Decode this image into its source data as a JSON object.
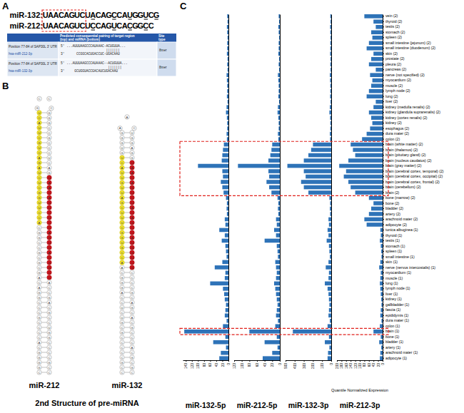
{
  "panel_labels": [
    "A",
    "B",
    "C"
  ],
  "panel_a": {
    "sequences": [
      {
        "name": "miR-132:",
        "sequence": "UAACAGUCUACAGCCAUGGUCG"
      },
      {
        "name": "miR-212:",
        "sequence": "UAACAGUCUCCAGUCACGGCC"
      }
    ],
    "seed": "UAACAGUC",
    "table": {
      "header": [
        "Predicted consequential pairing of target region (top) and miRNA (bottom)",
        "Site type"
      ],
      "rows": [
        {
          "target": "Position 77-84 of SAP30L 3' UTR",
          "mirna": "hsa-miR-212-3p",
          "pairing": [
            "5' ...AUUUAAGCCCAUAAAC-ACUGUUA...",
            "                       |||||||",
            "3'      CCGGCACUGACCUC-UGACAAU"
          ],
          "site": "8mer"
        },
        {
          "target": "Position 77-84 of SAP30L 3' UTR",
          "mirna": "hsa-miR-132-3p",
          "pairing": [
            "5' ...AUUUAAGCCCAUAAAC--ACUGUUA...",
            "                        |||||||",
            "3'     GCUGGUACCGACAUCUGACAAU"
          ],
          "site": "8mer"
        }
      ]
    }
  },
  "panel_b": {
    "structures": [
      {
        "name": "miR-212",
        "sequence": "CGGGGCACCCCGCCCGGACAGCGCGCCGGCACCUUGGCUCUAGACUGCUUACUGCCCGGGCCGCCCUCAGUAACAGUCUCCAGUCACGGCCACCGACGCCUGGCCCCGCC",
        "mature_5p": "ACCUUGGCUCUAGACUGCUUACU",
        "mature_3p": "UAACAGUCUCCAGUCACGGCC"
      },
      {
        "name": "miR-132",
        "sequence": "CCGCCCCCGCGUCUCCAGGGCAACCGUGGCUUUCGAUUGUUACUGUGGGAACUGGAGGUAACAGUCUACAGCCAUGGUCGCCCCGCAGCACGCCCACGCGC",
        "mature_5p": "ACCGUGGCUUUCGAUUGUUACU",
        "mature_3p": "UAACAGUCUACAGCCAUGGUCG"
      }
    ],
    "caption": "2nd Structure of pre-miRNA"
  },
  "panel_c": {
    "highlighted_categories": [
      "brain (white matter) (2)",
      "brain (thalamus) (2)",
      "brain (pituitary gland) (2)",
      "brain (nucleus caudatus) (2)",
      "brain (gray matter) (2)",
      "brain (cerebral cortex, temporal) (2)",
      "brain (cerebral cortex, occipital) (2)",
      "brain (cerebral cortex, frontal) (2)",
      "brain (cerebellum) (2)",
      "brain (2)",
      "brain (1)"
    ]
  },
  "chart_data": [
    {
      "type": "bar",
      "orientation": "horizontal",
      "title": "miR-132-5p",
      "color": "#2e73b8",
      "tick_labels": "x",
      "categories": [
        "vein (2)",
        "thyroid (2)",
        "testis (2)",
        "stomach (2)",
        "spleen (2)",
        "small intestine (jejunum) (2)",
        "small intestine (duodenum) (2)",
        "skin (2)",
        "prostate (2)",
        "pleura (2)",
        "pancreas (2)",
        "nerve (not specified) (2)",
        "myocardium (2)",
        "muscle (2)",
        "lymph node (2)",
        "lung (2)",
        "liver (2)",
        "kidney (medulla renalis) (2)",
        "kidney (glandula suprarenalis) (2)",
        "kidney (cortex renalis) (2)",
        "kidney (2)",
        "esophagus (2)",
        "dura mater (2)",
        "colon (2)",
        "brain (white matter) (2)",
        "brain (thalamus) (2)",
        "brain (pituitary gland) (2)",
        "brain (nucleus caudatus) (2)",
        "brain (gray matter) (2)",
        "brain (cerebral cortex, temporal) (2)",
        "brain (cerebral cortex, occipital) (2)",
        "brain (cerebral cortex, frontal) (2)",
        "brain (cerebellum) (2)",
        "brain (2)",
        "bone (marrow) (2)",
        "bone (2)",
        "bladder (2)",
        "artery (2)",
        "arachnoid mater (2)",
        "adipocyte (2)",
        "tunica albuginea (1)",
        "thyroid (1)",
        "testis (1)",
        "stomach (1)",
        "spleen (1)",
        "small intestine (1)",
        "skin (1)",
        "nerve (nervus intercostalis) (1)",
        "myocardium (1)",
        "muscle (1)",
        "lung (1)",
        "lymph node (1)",
        "liver (1)",
        "kidney (1)",
        "gallbladder (1)",
        "fascia (1)",
        "epididymis (1)",
        "dura mater (1)",
        "colon (1)",
        "brain (1)",
        "bone (1)",
        "bladder (1)",
        "artery (1)",
        "arachnoid mater (1)",
        "adipocyte (1)"
      ],
      "values": [
        4,
        3,
        5,
        4,
        3,
        4,
        4,
        5,
        3,
        4,
        3,
        6,
        5,
        4,
        4,
        5,
        3,
        6,
        8,
        5,
        4,
        4,
        6,
        5,
        15,
        18,
        20,
        22,
        100,
        20,
        18,
        25,
        20,
        16,
        8,
        5,
        6,
        5,
        12,
        10,
        30,
        12,
        22,
        10,
        8,
        6,
        20,
        45,
        10,
        12,
        60,
        18,
        14,
        12,
        8,
        10,
        12,
        6,
        18,
        145,
        10,
        50,
        8,
        25,
        30
      ],
      "xlim": [
        0,
        150
      ],
      "xticks": [
        0,
        20,
        40,
        60,
        80,
        100,
        120,
        140
      ]
    },
    {
      "type": "bar",
      "orientation": "horizontal",
      "title": "miR-212-5p",
      "color": "#2e73b8",
      "tick_labels": "x",
      "categories": [
        "vein (2)",
        "thyroid (2)",
        "testis (2)",
        "stomach (2)",
        "spleen (2)",
        "small intestine (jejunum) (2)",
        "small intestine (duodenum) (2)",
        "skin (2)",
        "prostate (2)",
        "pleura (2)",
        "pancreas (2)",
        "nerve (not specified) (2)",
        "myocardium (2)",
        "muscle (2)",
        "lymph node (2)",
        "lung (2)",
        "liver (2)",
        "kidney (medulla renalis) (2)",
        "kidney (glandula suprarenalis) (2)",
        "kidney (cortex renalis) (2)",
        "kidney (2)",
        "esophagus (2)",
        "dura mater (2)",
        "colon (2)",
        "brain (white matter) (2)",
        "brain (thalamus) (2)",
        "brain (pituitary gland) (2)",
        "brain (nucleus caudatus) (2)",
        "brain (gray matter) (2)",
        "brain (cerebral cortex, temporal) (2)",
        "brain (cerebral cortex, occipital) (2)",
        "brain (cerebral cortex, frontal) (2)",
        "brain (cerebellum) (2)",
        "brain (2)",
        "bone (marrow) (2)",
        "bone (2)",
        "bladder (2)",
        "artery (2)",
        "arachnoid mater (2)",
        "adipocyte (2)",
        "tunica albuginea (1)",
        "thyroid (1)",
        "testis (1)",
        "stomach (1)",
        "spleen (1)",
        "small intestine (1)",
        "skin (1)",
        "nerve (nervus intercostalis) (1)",
        "myocardium (1)",
        "muscle (1)",
        "lung (1)",
        "lymph node (1)",
        "liver (1)",
        "kidney (1)",
        "gallbladder (1)",
        "fascia (1)",
        "epididymis (1)",
        "dura mater (1)",
        "colon (1)",
        "brain (1)",
        "bone (1)",
        "bladder (1)",
        "artery (1)",
        "arachnoid mater (1)",
        "adipocyte (1)"
      ],
      "values": [
        3,
        2,
        4,
        3,
        2,
        3,
        3,
        4,
        2,
        3,
        2,
        5,
        4,
        3,
        3,
        4,
        2,
        5,
        6,
        4,
        3,
        3,
        5,
        4,
        20,
        22,
        25,
        30,
        110,
        30,
        28,
        35,
        28,
        22,
        6,
        4,
        5,
        4,
        10,
        8,
        15,
        10,
        40,
        8,
        6,
        5,
        12,
        10,
        8,
        10,
        15,
        12,
        10,
        8,
        6,
        8,
        10,
        5,
        12,
        80,
        8,
        40,
        6,
        20,
        45
      ],
      "xlim": [
        0,
        120
      ],
      "xticks": [
        0,
        20,
        40,
        60,
        80,
        100,
        120
      ]
    },
    {
      "type": "bar",
      "orientation": "horizontal",
      "title": "miR-132-3p",
      "color": "#2e73b8",
      "tick_labels": "x",
      "categories": [
        "vein (2)",
        "thyroid (2)",
        "testis (2)",
        "stomach (2)",
        "spleen (2)",
        "small intestine (jejunum) (2)",
        "small intestine (duodenum) (2)",
        "skin (2)",
        "prostate (2)",
        "pleura (2)",
        "pancreas (2)",
        "nerve (not specified) (2)",
        "myocardium (2)",
        "muscle (2)",
        "lymph node (2)",
        "lung (2)",
        "liver (2)",
        "kidney (medulla renalis) (2)",
        "kidney (glandula suprarenalis) (2)",
        "kidney (cortex renalis) (2)",
        "kidney (2)",
        "esophagus (2)",
        "dura mater (2)",
        "colon (2)",
        "brain (white matter) (2)",
        "brain (thalamus) (2)",
        "brain (pituitary gland) (2)",
        "brain (nucleus caudatus) (2)",
        "brain (gray matter) (2)",
        "brain (cerebral cortex, temporal) (2)",
        "brain (cerebral cortex, occipital) (2)",
        "brain (cerebral cortex, frontal) (2)",
        "brain (cerebellum) (2)",
        "brain (2)",
        "bone (marrow) (2)",
        "bone (2)",
        "bladder (2)",
        "artery (2)",
        "arachnoid mater (2)",
        "adipocyte (2)",
        "tunica albuginea (1)",
        "thyroid (1)",
        "testis (1)",
        "stomach (1)",
        "spleen (1)",
        "small intestine (1)",
        "skin (1)",
        "nerve (nervus intercostalis) (1)",
        "myocardium (1)",
        "muscle (1)",
        "lung (1)",
        "lymph node (1)",
        "liver (1)",
        "kidney (1)",
        "gallbladder (1)",
        "fascia (1)",
        "epididymis (1)",
        "dura mater (1)",
        "colon (1)",
        "brain (1)",
        "bone (1)",
        "bladder (1)",
        "artery (1)",
        "arachnoid mater (1)",
        "adipocyte (1)"
      ],
      "values": [
        10,
        8,
        12,
        10,
        8,
        10,
        10,
        12,
        8,
        10,
        8,
        15,
        12,
        10,
        10,
        12,
        8,
        15,
        20,
        12,
        10,
        10,
        15,
        12,
        200,
        220,
        250,
        300,
        480,
        300,
        280,
        330,
        300,
        250,
        20,
        12,
        15,
        12,
        30,
        25,
        40,
        30,
        50,
        25,
        20,
        15,
        30,
        60,
        25,
        30,
        70,
        40,
        30,
        25,
        20,
        25,
        30,
        15,
        40,
        420,
        25,
        70,
        20,
        35,
        40
      ],
      "xlim": [
        0,
        500
      ],
      "xticks": [
        0,
        100,
        200,
        300,
        400,
        500
      ]
    },
    {
      "type": "bar",
      "orientation": "horizontal",
      "title": "miR-212-3p",
      "color": "#2e73b8",
      "xlabel": "Quantile Normalized Expression",
      "categories": [
        "vein (2)",
        "thyroid (2)",
        "testis (2)",
        "stomach (2)",
        "spleen (2)",
        "small intestine (jejunum) (2)",
        "small intestine (duodenum) (2)",
        "skin (2)",
        "prostate (2)",
        "pleura (2)",
        "pancreas (2)",
        "nerve (not specified) (2)",
        "myocardium (2)",
        "muscle (2)",
        "lymph node (2)",
        "lung (2)",
        "liver (2)",
        "kidney (medulla renalis) (2)",
        "kidney (glandula suprarenalis) (2)",
        "kidney (cortex renalis) (2)",
        "kidney (2)",
        "esophagus (2)",
        "dura mater (2)",
        "colon (2)",
        "brain (white matter) (2)",
        "brain (thalamus) (2)",
        "brain (pituitary gland) (2)",
        "brain (nucleus caudatus) (2)",
        "brain (gray matter) (2)",
        "brain (cerebral cortex, temporal) (2)",
        "brain (cerebral cortex, occipital) (2)",
        "brain (cerebral cortex, frontal) (2)",
        "brain (cerebellum) (2)",
        "brain (2)",
        "bone (marrow) (2)",
        "bone (2)",
        "bladder (2)",
        "artery (2)",
        "arachnoid mater (2)",
        "adipocyte (2)",
        "tunica albuginea (1)",
        "thyroid (1)",
        "testis (1)",
        "stomach (1)",
        "spleen (1)",
        "small intestine (1)",
        "skin (1)",
        "nerve (nervus intercostalis) (1)",
        "myocardium (1)",
        "muscle (1)",
        "lung (1)",
        "lymph node (1)",
        "liver (1)",
        "kidney (1)",
        "gallbladder (1)",
        "fascia (1)",
        "epididymis (1)",
        "dura mater (1)",
        "colon (1)",
        "brain (1)",
        "bone (1)",
        "bladder (1)",
        "artery (1)",
        "arachnoid mater (1)",
        "adipocyte (1)"
      ],
      "values": [
        80,
        40,
        30,
        50,
        45,
        60,
        70,
        40,
        50,
        60,
        30,
        55,
        45,
        50,
        60,
        70,
        30,
        40,
        60,
        50,
        45,
        55,
        70,
        90,
        140,
        130,
        120,
        150,
        190,
        160,
        170,
        150,
        140,
        120,
        60,
        40,
        50,
        60,
        80,
        70,
        10,
        8,
        12,
        8,
        6,
        5,
        10,
        15,
        8,
        10,
        12,
        10,
        8,
        6,
        5,
        8,
        10,
        5,
        12,
        40,
        8,
        15,
        6,
        10,
        12
      ],
      "xlim": [
        0,
        200
      ],
      "xticks": [
        0,
        20,
        40,
        60,
        80,
        100,
        120,
        140,
        160,
        180,
        200
      ]
    }
  ]
}
